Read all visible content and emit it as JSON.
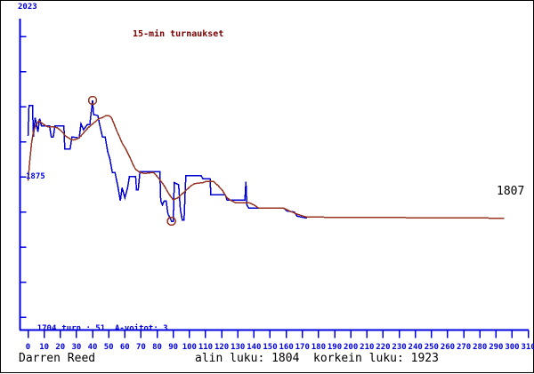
{
  "page": {
    "player_name": "Darren Reed",
    "summary_line": "alin luku: 1804  korkein luku: 1923"
  },
  "axis_info": {
    "y_top_label": "2023",
    "y_mid_label": "1875",
    "y_bottom_label": "1704",
    "stats_line": "turn.: 51  A-voitot: 3",
    "current_rating_label": "1807"
  },
  "colors": {
    "axis": "#0000e0",
    "rating_line": "#0000d0",
    "average_line": "#993322",
    "marker": "#993322",
    "title": "#7a0000",
    "text": "#000000"
  },
  "chart_data": {
    "type": "line",
    "title": "15-min turnaukset",
    "xlabel": "",
    "ylabel": "",
    "xlim": [
      0,
      310
    ],
    "ylim": [
      1704,
      2023
    ],
    "grid": false,
    "legend_position": "none",
    "x_ticks": [
      0,
      10,
      20,
      30,
      40,
      50,
      60,
      70,
      80,
      90,
      100,
      110,
      120,
      130,
      140,
      150,
      160,
      170,
      180,
      190,
      200,
      210,
      220,
      230,
      240,
      250,
      260,
      270,
      280,
      290,
      300,
      310
    ],
    "y_axis_labels": [
      2023,
      1875,
      1704
    ],
    "final_value": 1807,
    "stats": {
      "tournaments": 51,
      "a_wins": 3,
      "lowest": 1804,
      "highest": 1923
    },
    "series": [
      {
        "name": "tournament-rating",
        "color": "#0000d0",
        "points": [
          [
            0,
            1888
          ],
          [
            0.6,
            1918
          ],
          [
            2.8,
            1918
          ],
          [
            3.3,
            1887
          ],
          [
            4.4,
            1906
          ],
          [
            6.1,
            1892
          ],
          [
            7.2,
            1905
          ],
          [
            8.3,
            1898
          ],
          [
            13.3,
            1898
          ],
          [
            14.4,
            1887
          ],
          [
            15.6,
            1887
          ],
          [
            16.7,
            1898
          ],
          [
            22.2,
            1898
          ],
          [
            22.8,
            1875
          ],
          [
            26.1,
            1875
          ],
          [
            27.2,
            1887
          ],
          [
            31.7,
            1886
          ],
          [
            32.8,
            1900
          ],
          [
            34.4,
            1894
          ],
          [
            36.7,
            1899
          ],
          [
            38.3,
            1899
          ],
          [
            40,
            1923
          ],
          [
            40.6,
            1909
          ],
          [
            43.3,
            1908
          ],
          [
            44.4,
            1899
          ],
          [
            46.1,
            1887
          ],
          [
            47.8,
            1887
          ],
          [
            49.4,
            1872
          ],
          [
            50.6,
            1866
          ],
          [
            52.2,
            1852
          ],
          [
            53.9,
            1852
          ],
          [
            55.6,
            1839
          ],
          [
            57.2,
            1824
          ],
          [
            58.3,
            1837
          ],
          [
            60,
            1827
          ],
          [
            61.7,
            1837
          ],
          [
            62.8,
            1848
          ],
          [
            66.7,
            1848
          ],
          [
            67.2,
            1835
          ],
          [
            68.3,
            1835
          ],
          [
            69.4,
            1853
          ],
          [
            81.7,
            1853
          ],
          [
            82.2,
            1824
          ],
          [
            83.3,
            1820
          ],
          [
            84.4,
            1824
          ],
          [
            85.6,
            1824
          ],
          [
            86.7,
            1811
          ],
          [
            87.8,
            1808
          ],
          [
            88.9,
            1804
          ],
          [
            90,
            1804
          ],
          [
            90.6,
            1842
          ],
          [
            93.3,
            1840
          ],
          [
            94.4,
            1815
          ],
          [
            95.6,
            1805
          ],
          [
            96.7,
            1805
          ],
          [
            97.8,
            1849
          ],
          [
            107.2,
            1849
          ],
          [
            108.3,
            1846
          ],
          [
            112.8,
            1846
          ],
          [
            113.3,
            1830
          ],
          [
            122.2,
            1830
          ],
          [
            123.3,
            1825
          ],
          [
            134.4,
            1825
          ],
          [
            135,
            1843
          ],
          [
            135.6,
            1820
          ],
          [
            136.7,
            1817
          ],
          [
            158.3,
            1817
          ],
          [
            160.6,
            1814
          ],
          [
            165,
            1813
          ],
          [
            166.7,
            1809
          ],
          [
            172.8,
            1807
          ]
        ]
      },
      {
        "name": "rating-average",
        "color": "#993322",
        "points": [
          [
            0,
            1844
          ],
          [
            1.1,
            1864
          ],
          [
            2.2,
            1881
          ],
          [
            3.3,
            1892
          ],
          [
            5,
            1899
          ],
          [
            6.7,
            1903
          ],
          [
            8.3,
            1901
          ],
          [
            10,
            1899
          ],
          [
            12.2,
            1897
          ],
          [
            15.6,
            1897
          ],
          [
            18.3,
            1896
          ],
          [
            21.1,
            1892
          ],
          [
            23.3,
            1888
          ],
          [
            26.1,
            1885
          ],
          [
            28.3,
            1884
          ],
          [
            30.6,
            1885
          ],
          [
            32.8,
            1888
          ],
          [
            35,
            1892
          ],
          [
            37.2,
            1896
          ],
          [
            39.4,
            1899
          ],
          [
            41.7,
            1902
          ],
          [
            43.9,
            1905
          ],
          [
            46.1,
            1906
          ],
          [
            48.3,
            1908
          ],
          [
            50,
            1908
          ],
          [
            51.7,
            1906
          ],
          [
            53.3,
            1900
          ],
          [
            55,
            1893
          ],
          [
            56.7,
            1887
          ],
          [
            58.3,
            1881
          ],
          [
            60.6,
            1875
          ],
          [
            62.8,
            1868
          ],
          [
            65,
            1860
          ],
          [
            66.7,
            1855
          ],
          [
            69.4,
            1852
          ],
          [
            72.2,
            1851
          ],
          [
            77.8,
            1852
          ],
          [
            81.1,
            1846
          ],
          [
            84.4,
            1839
          ],
          [
            87.2,
            1831
          ],
          [
            90,
            1825
          ],
          [
            92.8,
            1827
          ],
          [
            95.6,
            1831
          ],
          [
            98.3,
            1835
          ],
          [
            101.1,
            1839
          ],
          [
            103.3,
            1841
          ],
          [
            108.3,
            1842
          ],
          [
            110,
            1843
          ],
          [
            115,
            1843
          ],
          [
            117.8,
            1839
          ],
          [
            120.6,
            1834
          ],
          [
            122.8,
            1828
          ],
          [
            125,
            1825
          ],
          [
            128.9,
            1822
          ],
          [
            137.2,
            1822
          ],
          [
            140,
            1820
          ],
          [
            142.8,
            1817
          ],
          [
            158.3,
            1817
          ],
          [
            162.2,
            1814
          ],
          [
            166.7,
            1811
          ],
          [
            170.6,
            1809
          ],
          [
            172.8,
            1808
          ],
          [
            295,
            1807
          ]
        ]
      }
    ],
    "markers": [
      {
        "name": "highest-point",
        "x": 40,
        "value": 1923
      },
      {
        "name": "lowest-point",
        "x": 88.9,
        "value": 1804
      }
    ]
  }
}
